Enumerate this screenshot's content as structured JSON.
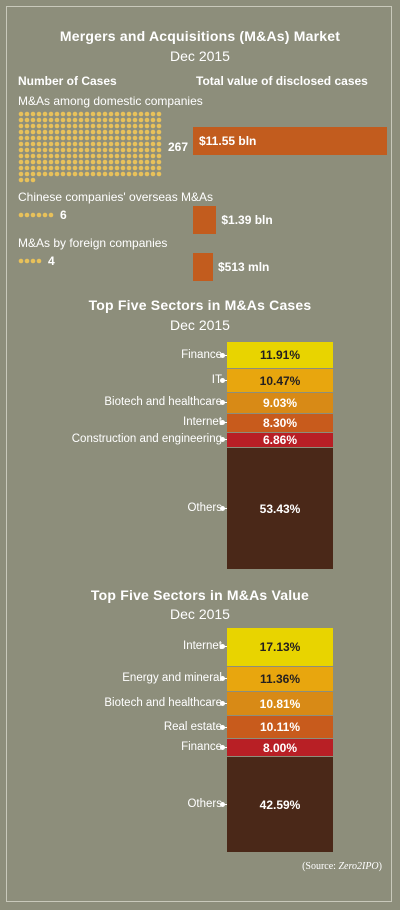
{
  "market": {
    "title": "Mergers and Acquisitions (M&As) Market",
    "subtitle": "Dec 2015",
    "count_header": "Number of Cases",
    "value_header": "Total value of disclosed cases",
    "colors": {
      "dot": "#e8c15a",
      "value_bar": "#c25c1e"
    }
  },
  "chart_data": [
    {
      "type": "bar",
      "title": "Mergers and Acquisitions (M&As) Market",
      "subtitle": "Dec 2015",
      "categories": [
        "M&As among domestic companies",
        "Chinese companies' overseas M&As",
        "M&As by foreign companies"
      ],
      "series": [
        {
          "name": "Number of Cases",
          "values": [
            267,
            6,
            4
          ]
        },
        {
          "name": "Total value of disclosed cases",
          "values": [
            11.55,
            1.39,
            0.513
          ],
          "labels": [
            "$11.55 bln",
            "$1.39 bln",
            "$513 mln"
          ]
        }
      ]
    },
    {
      "type": "bar",
      "title": "Top Five Sectors in M&As Cases",
      "subtitle": "Dec 2015",
      "categories": [
        "Finance",
        "IT",
        "Biotech and healthcare",
        "Internet",
        "Construction and engineering",
        "Others"
      ],
      "values": [
        11.91,
        10.47,
        9.03,
        8.3,
        6.86,
        53.43
      ],
      "labels": [
        "11.91%",
        "10.47%",
        "9.03%",
        "8.30%",
        "6.86%",
        "53.43%"
      ],
      "colors": [
        "#e8d400",
        "#e8a60e",
        "#d88a16",
        "#c85b1c",
        "#b81f25",
        "#4a2818"
      ],
      "text_colors": [
        "#231f20",
        "#231f20",
        "#ffffff",
        "#ffffff",
        "#ffffff",
        "#ffffff"
      ]
    },
    {
      "type": "bar",
      "title": "Top Five Sectors in M&As Value",
      "subtitle": "Dec 2015",
      "categories": [
        "Internet",
        "Energy and mineral",
        "Biotech and healthcare",
        "Real estate",
        "Finance",
        "Others"
      ],
      "values": [
        17.13,
        11.36,
        10.81,
        10.11,
        8.0,
        42.59
      ],
      "labels": [
        "17.13%",
        "11.36%",
        "10.81%",
        "10.11%",
        "8.00%",
        "42.59%"
      ],
      "colors": [
        "#e8d400",
        "#e8a60e",
        "#d88a16",
        "#c85b1c",
        "#b81f25",
        "#4a2818"
      ],
      "text_colors": [
        "#231f20",
        "#231f20",
        "#ffffff",
        "#ffffff",
        "#ffffff",
        "#ffffff"
      ]
    }
  ],
  "source": {
    "prefix": "(Source: ",
    "name": "Zero2IPO",
    "suffix": ")"
  }
}
